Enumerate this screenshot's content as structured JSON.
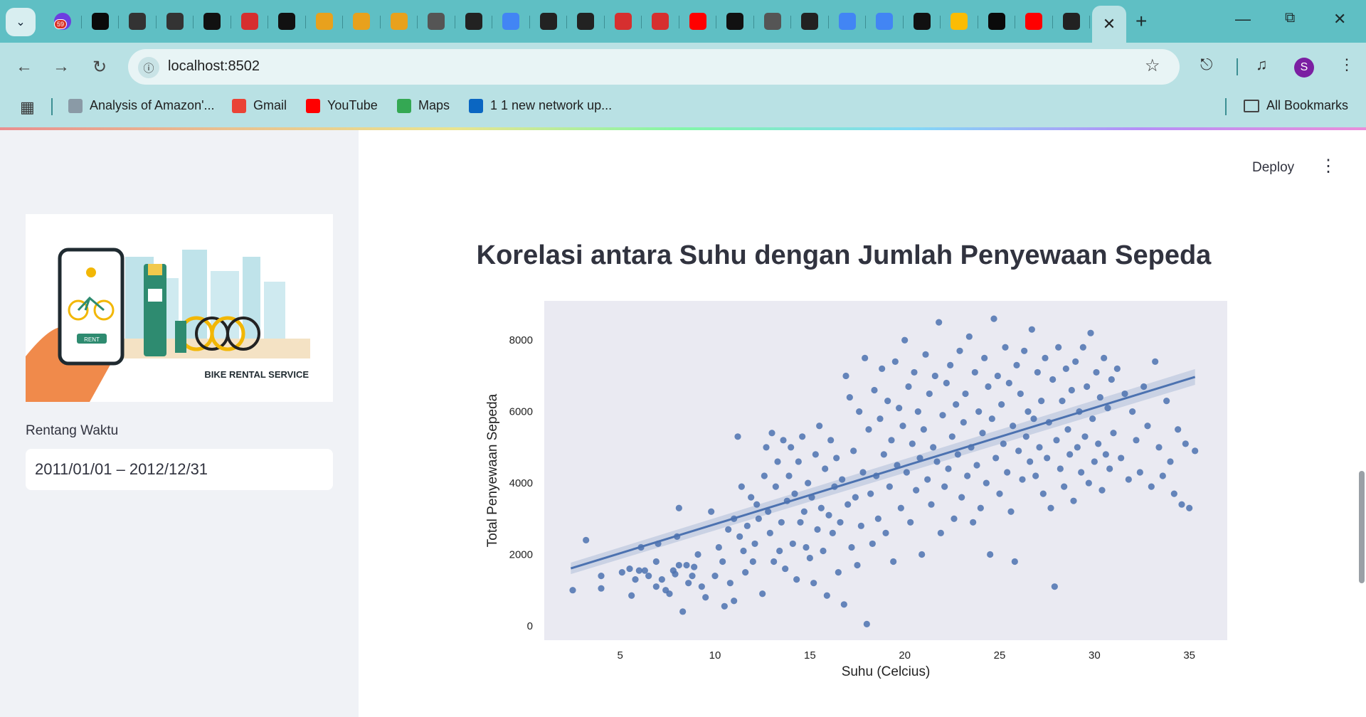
{
  "browser": {
    "tab_badge": "59",
    "url": "localhost:8502",
    "avatar_letter": "S",
    "bookmarks": [
      {
        "label": "Analysis of Amazon'...",
        "icon": "page-icon",
        "color": "#8a9aa6"
      },
      {
        "label": "Gmail",
        "icon": "gmail-icon",
        "color": "#ea4335"
      },
      {
        "label": "YouTube",
        "icon": "youtube-icon",
        "color": "#ff0000"
      },
      {
        "label": "Maps",
        "icon": "maps-icon",
        "color": "#34a853"
      },
      {
        "label": "1 1 new network up...",
        "icon": "linkedin-icon",
        "color": "#0a66c2"
      }
    ],
    "all_bookmarks": "All Bookmarks",
    "tabs": [
      {
        "icon": "ring-icon",
        "color": "#0a0a0a"
      },
      {
        "icon": "g-icon",
        "color": "#333"
      },
      {
        "icon": "g-icon",
        "color": "#333"
      },
      {
        "icon": "github-icon",
        "color": "#111"
      },
      {
        "icon": "crown-icon",
        "color": "#d62f2f"
      },
      {
        "icon": "github-icon",
        "color": "#111"
      },
      {
        "icon": "infinity-icon",
        "color": "#e8a11d"
      },
      {
        "icon": "infinity-icon",
        "color": "#e8a11d"
      },
      {
        "icon": "infinity-icon",
        "color": "#e8a11d"
      },
      {
        "icon": "chrome-icon",
        "color": "#555"
      },
      {
        "icon": "crown-dark-icon",
        "color": "#222"
      },
      {
        "icon": "google-icon",
        "color": "#4285f4"
      },
      {
        "icon": "openai-icon",
        "color": "#222"
      },
      {
        "icon": "crown-dark-icon",
        "color": "#222"
      },
      {
        "icon": "crown-icon",
        "color": "#d62f2f"
      },
      {
        "icon": "crown-icon",
        "color": "#d62f2f"
      },
      {
        "icon": "youtube-icon",
        "color": "#ff0000"
      },
      {
        "icon": "github-icon",
        "color": "#111"
      },
      {
        "icon": "chrome-icon",
        "color": "#555"
      },
      {
        "icon": "crown-dark-icon",
        "color": "#222"
      },
      {
        "icon": "docs-icon",
        "color": "#4285f4"
      },
      {
        "icon": "docs-icon",
        "color": "#4285f4"
      },
      {
        "icon": "d-icon",
        "color": "#111"
      },
      {
        "icon": "drive-icon",
        "color": "#fbbc04"
      },
      {
        "icon": "ring-icon",
        "color": "#0a0a0a"
      },
      {
        "icon": "youtube-icon",
        "color": "#ff0000"
      },
      {
        "icon": "crown-dark-icon",
        "color": "#222"
      }
    ]
  },
  "sidebar": {
    "hero_caption": "BIKE RENTAL SERVICE",
    "hero_rent_label": "RENT",
    "date_label": "Rentang Waktu",
    "date_value": "2011/01/01 – 2012/12/31"
  },
  "header": {
    "deploy_label": "Deploy"
  },
  "main": {
    "title": "Korelasi antara Suhu dengan Jumlah Penyewaan Sepeda"
  },
  "chart_data": {
    "type": "scatter",
    "xlabel": "Suhu (Celcius)",
    "ylabel": "Total Penyewaan Sepeda",
    "xlim": [
      1,
      37
    ],
    "ylim": [
      -400,
      9100
    ],
    "xticks": [
      5,
      10,
      15,
      20,
      25,
      30,
      35
    ],
    "yticks": [
      0,
      2000,
      4000,
      6000,
      8000
    ],
    "point_color": "#4c72b0",
    "background": "#eaeaf2",
    "grid": false,
    "regression": {
      "x": [
        2.4,
        35.3
      ],
      "y": [
        1610,
        6970
      ],
      "ci_half_width": [
        160,
        220
      ]
    },
    "points": [
      [
        2.5,
        1000
      ],
      [
        3.2,
        2400
      ],
      [
        4.0,
        1050
      ],
      [
        4.0,
        1400
      ],
      [
        5.1,
        1500
      ],
      [
        5.5,
        1600
      ],
      [
        5.6,
        850
      ],
      [
        5.8,
        1300
      ],
      [
        6.0,
        1550
      ],
      [
        6.1,
        2200
      ],
      [
        6.3,
        1550
      ],
      [
        6.5,
        1400
      ],
      [
        6.9,
        1100
      ],
      [
        6.9,
        1800
      ],
      [
        7.0,
        2300
      ],
      [
        7.2,
        1300
      ],
      [
        7.4,
        1000
      ],
      [
        7.6,
        900
      ],
      [
        7.8,
        1550
      ],
      [
        7.9,
        1450
      ],
      [
        8.0,
        2500
      ],
      [
        8.1,
        1700
      ],
      [
        8.1,
        3300
      ],
      [
        8.3,
        400
      ],
      [
        8.5,
        1700
      ],
      [
        8.6,
        1200
      ],
      [
        8.8,
        1400
      ],
      [
        8.9,
        1650
      ],
      [
        9.1,
        2000
      ],
      [
        9.3,
        1100
      ],
      [
        9.5,
        800
      ],
      [
        9.8,
        3200
      ],
      [
        10.0,
        1400
      ],
      [
        10.2,
        2200
      ],
      [
        10.4,
        1800
      ],
      [
        10.5,
        550
      ],
      [
        10.7,
        2700
      ],
      [
        10.8,
        1200
      ],
      [
        11.0,
        3000
      ],
      [
        11.0,
        700
      ],
      [
        11.2,
        5300
      ],
      [
        11.3,
        2500
      ],
      [
        11.4,
        3900
      ],
      [
        11.5,
        2100
      ],
      [
        11.6,
        1500
      ],
      [
        11.7,
        2800
      ],
      [
        11.9,
        3600
      ],
      [
        12.0,
        1800
      ],
      [
        12.1,
        2300
      ],
      [
        12.2,
        3400
      ],
      [
        12.3,
        3000
      ],
      [
        12.5,
        900
      ],
      [
        12.6,
        4200
      ],
      [
        12.7,
        5000
      ],
      [
        12.8,
        3200
      ],
      [
        12.9,
        2600
      ],
      [
        13.0,
        5400
      ],
      [
        13.1,
        1800
      ],
      [
        13.2,
        3900
      ],
      [
        13.3,
        4600
      ],
      [
        13.4,
        2100
      ],
      [
        13.5,
        2900
      ],
      [
        13.6,
        5200
      ],
      [
        13.7,
        1600
      ],
      [
        13.8,
        3500
      ],
      [
        13.9,
        4200
      ],
      [
        14.0,
        5000
      ],
      [
        14.1,
        2300
      ],
      [
        14.2,
        3700
      ],
      [
        14.3,
        1300
      ],
      [
        14.4,
        4600
      ],
      [
        14.5,
        2900
      ],
      [
        14.6,
        5300
      ],
      [
        14.7,
        3200
      ],
      [
        14.8,
        2200
      ],
      [
        14.9,
        4000
      ],
      [
        15.0,
        1900
      ],
      [
        15.1,
        3600
      ],
      [
        15.2,
        1200
      ],
      [
        15.3,
        4800
      ],
      [
        15.4,
        2700
      ],
      [
        15.5,
        5600
      ],
      [
        15.6,
        3300
      ],
      [
        15.7,
        2100
      ],
      [
        15.8,
        4400
      ],
      [
        15.9,
        850
      ],
      [
        16.0,
        3100
      ],
      [
        16.1,
        5200
      ],
      [
        16.2,
        2600
      ],
      [
        16.3,
        3900
      ],
      [
        16.4,
        4700
      ],
      [
        16.5,
        1500
      ],
      [
        16.6,
        2900
      ],
      [
        16.7,
        4100
      ],
      [
        16.8,
        600
      ],
      [
        16.9,
        7000
      ],
      [
        17.0,
        3400
      ],
      [
        17.1,
        6400
      ],
      [
        17.2,
        2200
      ],
      [
        17.3,
        4900
      ],
      [
        17.4,
        3600
      ],
      [
        17.5,
        1700
      ],
      [
        17.6,
        6000
      ],
      [
        17.7,
        2800
      ],
      [
        17.8,
        4300
      ],
      [
        17.9,
        7500
      ],
      [
        18.0,
        50
      ],
      [
        18.1,
        5500
      ],
      [
        18.2,
        3700
      ],
      [
        18.3,
        2300
      ],
      [
        18.4,
        6600
      ],
      [
        18.5,
        4200
      ],
      [
        18.6,
        3000
      ],
      [
        18.7,
        5800
      ],
      [
        18.8,
        7200
      ],
      [
        18.9,
        4800
      ],
      [
        19.0,
        2600
      ],
      [
        19.1,
        6300
      ],
      [
        19.2,
        3900
      ],
      [
        19.3,
        5200
      ],
      [
        19.4,
        1800
      ],
      [
        19.5,
        7400
      ],
      [
        19.6,
        4500
      ],
      [
        19.7,
        6100
      ],
      [
        19.8,
        3300
      ],
      [
        19.9,
        5600
      ],
      [
        20.0,
        8000
      ],
      [
        20.1,
        4300
      ],
      [
        20.2,
        6700
      ],
      [
        20.3,
        2900
      ],
      [
        20.4,
        5100
      ],
      [
        20.5,
        7100
      ],
      [
        20.6,
        3800
      ],
      [
        20.7,
        6000
      ],
      [
        20.8,
        4700
      ],
      [
        20.9,
        2000
      ],
      [
        21.0,
        5500
      ],
      [
        21.1,
        7600
      ],
      [
        21.2,
        4100
      ],
      [
        21.3,
        6500
      ],
      [
        21.4,
        3400
      ],
      [
        21.5,
        5000
      ],
      [
        21.6,
        7000
      ],
      [
        21.7,
        4600
      ],
      [
        21.8,
        8500
      ],
      [
        21.9,
        2600
      ],
      [
        22.0,
        5900
      ],
      [
        22.1,
        3900
      ],
      [
        22.2,
        6800
      ],
      [
        22.3,
        4400
      ],
      [
        22.4,
        7300
      ],
      [
        22.5,
        5300
      ],
      [
        22.6,
        3000
      ],
      [
        22.7,
        6200
      ],
      [
        22.8,
        4800
      ],
      [
        22.9,
        7700
      ],
      [
        23.0,
        3600
      ],
      [
        23.1,
        5700
      ],
      [
        23.2,
        6500
      ],
      [
        23.3,
        4200
      ],
      [
        23.4,
        8100
      ],
      [
        23.5,
        5000
      ],
      [
        23.6,
        2900
      ],
      [
        23.7,
        7100
      ],
      [
        23.8,
        4500
      ],
      [
        23.9,
        6000
      ],
      [
        24.0,
        3300
      ],
      [
        24.1,
        5400
      ],
      [
        24.2,
        7500
      ],
      [
        24.3,
        4000
      ],
      [
        24.4,
        6700
      ],
      [
        24.5,
        2000
      ],
      [
        24.6,
        5800
      ],
      [
        24.7,
        8600
      ],
      [
        24.8,
        4700
      ],
      [
        24.9,
        7000
      ],
      [
        25.0,
        3700
      ],
      [
        25.1,
        6200
      ],
      [
        25.2,
        5100
      ],
      [
        25.3,
        7800
      ],
      [
        25.4,
        4300
      ],
      [
        25.5,
        6800
      ],
      [
        25.6,
        3200
      ],
      [
        25.7,
        5600
      ],
      [
        25.8,
        1800
      ],
      [
        25.9,
        7300
      ],
      [
        26.0,
        4900
      ],
      [
        26.1,
        6500
      ],
      [
        26.2,
        4100
      ],
      [
        26.3,
        7700
      ],
      [
        26.4,
        5300
      ],
      [
        26.5,
        6000
      ],
      [
        26.6,
        4600
      ],
      [
        26.7,
        8300
      ],
      [
        26.8,
        5800
      ],
      [
        26.9,
        4200
      ],
      [
        27.0,
        7100
      ],
      [
        27.1,
        5000
      ],
      [
        27.2,
        6300
      ],
      [
        27.3,
        3700
      ],
      [
        27.4,
        7500
      ],
      [
        27.5,
        4700
      ],
      [
        27.6,
        5700
      ],
      [
        27.7,
        3300
      ],
      [
        27.8,
        6900
      ],
      [
        27.9,
        1100
      ],
      [
        28.0,
        5200
      ],
      [
        28.1,
        7800
      ],
      [
        28.2,
        4400
      ],
      [
        28.3,
        6300
      ],
      [
        28.4,
        3900
      ],
      [
        28.5,
        7200
      ],
      [
        28.6,
        5500
      ],
      [
        28.7,
        4800
      ],
      [
        28.8,
        6600
      ],
      [
        28.9,
        3500
      ],
      [
        29.0,
        7400
      ],
      [
        29.1,
        5000
      ],
      [
        29.2,
        6000
      ],
      [
        29.3,
        4300
      ],
      [
        29.4,
        7800
      ],
      [
        29.5,
        5300
      ],
      [
        29.6,
        6700
      ],
      [
        29.7,
        4000
      ],
      [
        29.8,
        8200
      ],
      [
        29.9,
        5800
      ],
      [
        30.0,
        4600
      ],
      [
        30.1,
        7100
      ],
      [
        30.2,
        5100
      ],
      [
        30.3,
        6400
      ],
      [
        30.4,
        3800
      ],
      [
        30.5,
        7500
      ],
      [
        30.6,
        4800
      ],
      [
        30.7,
        6100
      ],
      [
        30.8,
        4400
      ],
      [
        30.9,
        6900
      ],
      [
        31.0,
        5400
      ],
      [
        31.2,
        7200
      ],
      [
        31.4,
        4700
      ],
      [
        31.6,
        6500
      ],
      [
        31.8,
        4100
      ],
      [
        32.0,
        6000
      ],
      [
        32.2,
        5200
      ],
      [
        32.4,
        4300
      ],
      [
        32.6,
        6700
      ],
      [
        32.8,
        5600
      ],
      [
        33.0,
        3900
      ],
      [
        33.2,
        7400
      ],
      [
        33.4,
        5000
      ],
      [
        33.6,
        4200
      ],
      [
        33.8,
        6300
      ],
      [
        34.0,
        4600
      ],
      [
        34.2,
        3700
      ],
      [
        34.4,
        5500
      ],
      [
        34.6,
        3400
      ],
      [
        34.8,
        5100
      ],
      [
        35.0,
        3300
      ],
      [
        35.3,
        4900
      ]
    ]
  }
}
